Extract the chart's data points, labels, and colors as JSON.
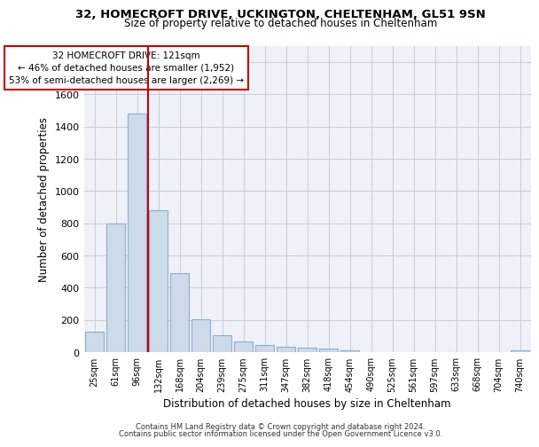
{
  "title1": "32, HOMECROFT DRIVE, UCKINGTON, CHELTENHAM, GL51 9SN",
  "title2": "Size of property relative to detached houses in Cheltenham",
  "xlabel": "Distribution of detached houses by size in Cheltenham",
  "ylabel": "Number of detached properties",
  "categories": [
    "25sqm",
    "61sqm",
    "96sqm",
    "132sqm",
    "168sqm",
    "204sqm",
    "239sqm",
    "275sqm",
    "311sqm",
    "347sqm",
    "382sqm",
    "418sqm",
    "454sqm",
    "490sqm",
    "525sqm",
    "561sqm",
    "597sqm",
    "633sqm",
    "668sqm",
    "704sqm",
    "740sqm"
  ],
  "values": [
    125,
    800,
    1480,
    880,
    490,
    205,
    105,
    65,
    45,
    35,
    28,
    22,
    12,
    0,
    0,
    0,
    0,
    0,
    0,
    0,
    12
  ],
  "bar_color": "#cddaea",
  "bar_edge_color": "#8ab0cc",
  "vline_color": "#cc0000",
  "vline_x": 2.5,
  "annotation_line1": "32 HOMECROFT DRIVE: 121sqm",
  "annotation_line2": "← 46% of detached houses are smaller (1,952)",
  "annotation_line3": "53% of semi-detached houses are larger (2,269) →",
  "annotation_box_edgecolor": "#cc0000",
  "ylim": [
    0,
    1900
  ],
  "yticks": [
    0,
    200,
    400,
    600,
    800,
    1000,
    1200,
    1400,
    1600,
    1800
  ],
  "footer1": "Contains HM Land Registry data © Crown copyright and database right 2024.",
  "footer2": "Contains public sector information licensed under the Open Government Licence v3.0.",
  "bg_color": "#eef1f8",
  "grid_color": "#c5cdd8",
  "fig_width": 6.0,
  "fig_height": 5.0,
  "dpi": 100
}
